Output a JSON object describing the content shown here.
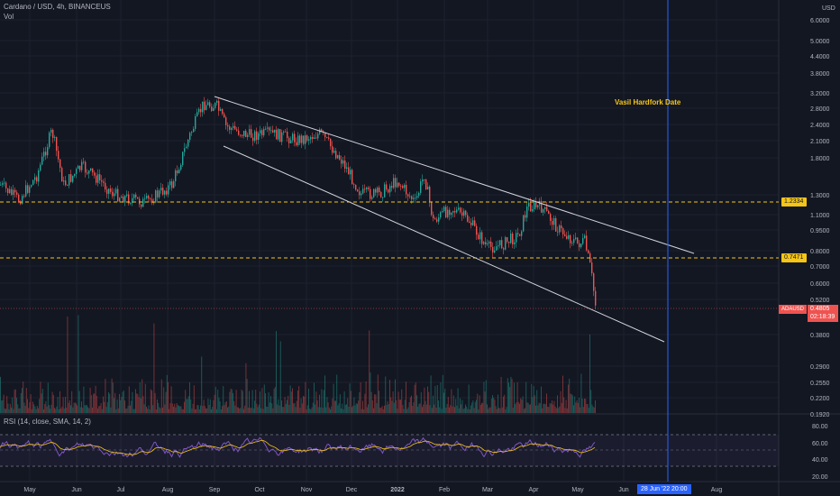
{
  "legend": {
    "title": "Cardano / USD, 4h, BINANCEUS",
    "vol": "Vol",
    "rsi": "RSI (14, close, SMA, 14, 2)"
  },
  "price_axis": {
    "currency": "USD",
    "ticks": [
      "6.0000",
      "5.0000",
      "4.4000",
      "3.8000",
      "3.2000",
      "2.8000",
      "2.4000",
      "2.1000",
      "1.8000",
      "1.3000",
      "1.1000",
      "0.9500",
      "0.8000",
      "0.7000",
      "0.6000",
      "0.5200",
      "0.3800",
      "0.2900",
      "0.2550",
      "0.2200",
      "0.1920"
    ]
  },
  "rsi_axis": {
    "ticks": [
      "80.00",
      "60.00",
      "40.00",
      "20.00"
    ]
  },
  "time_axis": {
    "ticks": [
      "May",
      "Jun",
      "Jul",
      "Aug",
      "Sep",
      "Oct",
      "Nov",
      "Dec",
      "2022",
      "Feb",
      "Mar",
      "Apr",
      "May",
      "Jun",
      "Aug"
    ]
  },
  "annotation": {
    "text": "Vasil Hardfork Date"
  },
  "levels": {
    "upper": "1.2334",
    "lower": "0.7471"
  },
  "last_price": {
    "symbol": "ADAUSD",
    "price": "0.4805",
    "countdown": "02:18:39"
  },
  "cursor_time": "28 Jun '22  20:00",
  "colors": {
    "bg": "#131722",
    "up": "#26a69a",
    "down": "#ef5350",
    "rsi": "#7e57c2",
    "level": "#f5c518",
    "cursor": "#2962ff"
  }
}
